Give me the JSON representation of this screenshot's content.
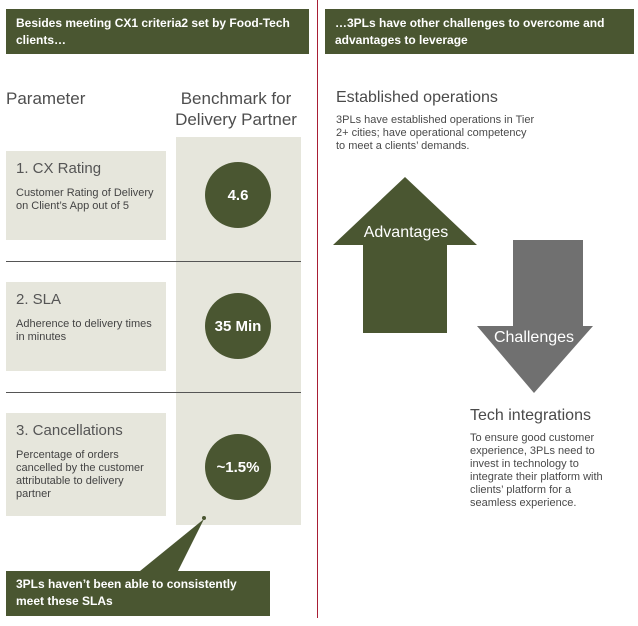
{
  "banners": {
    "left": "Besides meeting CX1 criteria2 set by Food-Tech clients…",
    "right": "…3PLs have other challenges to overcome and advantages to leverage"
  },
  "columns": {
    "parameter": "Parameter",
    "benchmark": "Benchmark for Delivery Partner"
  },
  "parameters": [
    {
      "title": "1. CX Rating",
      "description": "Customer Rating of Delivery on Client’s App out of 5",
      "benchmark": "4.6"
    },
    {
      "title": "2. SLA",
      "description": "Adherence to delivery times in minutes",
      "benchmark": "35 Min"
    },
    {
      "title": "3. Cancellations",
      "description": "Percentage of orders cancelled by the customer attributable to delivery partner",
      "benchmark": "~1.5%"
    }
  ],
  "callout": "3PLs haven’t been able to consistently meet these SLAs",
  "established": {
    "title": "Established operations",
    "description": "3PLs have established operations in Tier 2+ cities; have operational competency to meet a clients’ demands."
  },
  "arrows": {
    "advantages": "Advantages",
    "challenges": "Challenges"
  },
  "tech": {
    "title": "Tech integrations",
    "description": "To ensure good customer experience, 3PLs need to invest in technology to integrate their platform with clients’ platform for a seamless experience."
  },
  "colors": {
    "olive": "#4a5631",
    "grey_arrow": "#707070",
    "panel": "#e6e6dc",
    "divider": "#a81e35"
  }
}
